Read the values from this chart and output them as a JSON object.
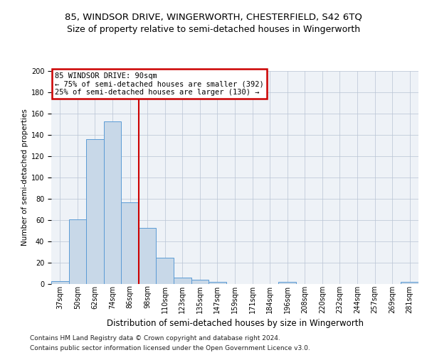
{
  "title1": "85, WINDSOR DRIVE, WINGERWORTH, CHESTERFIELD, S42 6TQ",
  "title2": "Size of property relative to semi-detached houses in Wingerworth",
  "xlabel": "Distribution of semi-detached houses by size in Wingerworth",
  "ylabel": "Number of semi-detached properties",
  "categories": [
    "37sqm",
    "50sqm",
    "62sqm",
    "74sqm",
    "86sqm",
    "98sqm",
    "110sqm",
    "123sqm",
    "135sqm",
    "147sqm",
    "159sqm",
    "171sqm",
    "184sqm",
    "196sqm",
    "208sqm",
    "220sqm",
    "232sqm",
    "244sqm",
    "257sqm",
    "269sqm",
    "281sqm"
  ],
  "values": [
    3,
    61,
    136,
    153,
    77,
    53,
    25,
    6,
    4,
    2,
    0,
    0,
    0,
    2,
    0,
    0,
    0,
    0,
    0,
    0,
    2
  ],
  "bar_color": "#c8d8e8",
  "bar_edge_color": "#5b9bd5",
  "vline_x": 4.5,
  "vline_color": "#cc0000",
  "annotation_line1": "85 WINDSOR DRIVE: 90sqm",
  "annotation_line2": "← 75% of semi-detached houses are smaller (392)",
  "annotation_line3": "25% of semi-detached houses are larger (130) →",
  "annotation_box_color": "#ffffff",
  "annotation_box_edge": "#cc0000",
  "ylim": [
    0,
    200
  ],
  "yticks": [
    0,
    20,
    40,
    60,
    80,
    100,
    120,
    140,
    160,
    180,
    200
  ],
  "background_color": "#eef2f7",
  "footer1": "Contains HM Land Registry data © Crown copyright and database right 2024.",
  "footer2": "Contains public sector information licensed under the Open Government Licence v3.0.",
  "title1_fontsize": 9.5,
  "title2_fontsize": 9,
  "xlabel_fontsize": 8.5,
  "ylabel_fontsize": 7.5,
  "tick_fontsize": 7,
  "footer_fontsize": 6.5
}
